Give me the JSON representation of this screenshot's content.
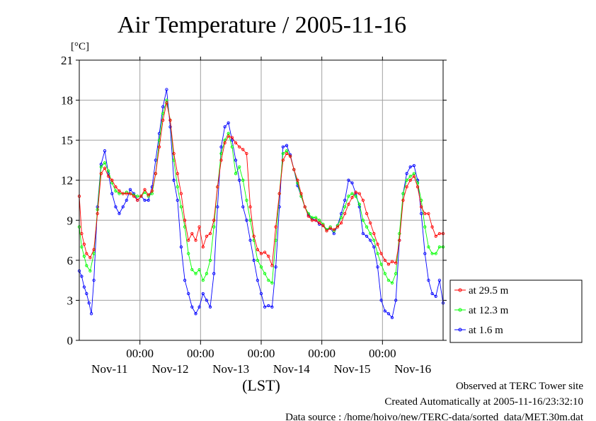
{
  "chart_data": {
    "type": "line",
    "title": "Air Temperature / 2005-11-16",
    "y_unit": "[°C]",
    "xlabel": "(LST)",
    "ylim": [
      0,
      21
    ],
    "yticks": [
      0,
      3,
      6,
      9,
      12,
      15,
      18,
      21
    ],
    "grid": true,
    "legend_position": "right, bottom",
    "x_range_days": [
      0,
      6
    ],
    "x_time_ticks": [
      {
        "day": 1,
        "label": "00:00"
      },
      {
        "day": 2,
        "label": "00:00"
      },
      {
        "day": 3,
        "label": "00:00"
      },
      {
        "day": 4,
        "label": "00:00"
      },
      {
        "day": 5,
        "label": "00:00"
      }
    ],
    "x_date_labels": [
      {
        "day": 0.5,
        "label": "Nov-11"
      },
      {
        "day": 1.5,
        "label": "Nov-12"
      },
      {
        "day": 2.5,
        "label": "Nov-13"
      },
      {
        "day": 3.5,
        "label": "Nov-14"
      },
      {
        "day": 4.5,
        "label": "Nov-15"
      },
      {
        "day": 5.5,
        "label": "Nov-16"
      }
    ],
    "series": [
      {
        "name": "at 29.5 m",
        "color": "#ff0000",
        "points": [
          [
            0.0,
            10.8
          ],
          [
            0.04,
            8.0
          ],
          [
            0.08,
            7.2
          ],
          [
            0.12,
            6.5
          ],
          [
            0.18,
            6.2
          ],
          [
            0.24,
            6.8
          ],
          [
            0.3,
            9.5
          ],
          [
            0.36,
            12.5
          ],
          [
            0.42,
            12.9
          ],
          [
            0.48,
            12.3
          ],
          [
            0.54,
            12.0
          ],
          [
            0.6,
            11.5
          ],
          [
            0.66,
            11.2
          ],
          [
            0.72,
            11.0
          ],
          [
            0.78,
            11.0
          ],
          [
            0.84,
            11.0
          ],
          [
            0.9,
            10.8
          ],
          [
            0.96,
            10.5
          ],
          [
            1.02,
            10.8
          ],
          [
            1.08,
            11.3
          ],
          [
            1.14,
            10.9
          ],
          [
            1.2,
            11.2
          ],
          [
            1.26,
            12.5
          ],
          [
            1.32,
            14.5
          ],
          [
            1.38,
            16.5
          ],
          [
            1.44,
            17.8
          ],
          [
            1.5,
            16.5
          ],
          [
            1.56,
            14.0
          ],
          [
            1.62,
            12.5
          ],
          [
            1.68,
            11.0
          ],
          [
            1.74,
            9.0
          ],
          [
            1.8,
            7.5
          ],
          [
            1.86,
            8.0
          ],
          [
            1.92,
            7.5
          ],
          [
            1.98,
            8.5
          ],
          [
            2.04,
            7.0
          ],
          [
            2.1,
            7.8
          ],
          [
            2.16,
            8.0
          ],
          [
            2.22,
            9.0
          ],
          [
            2.28,
            11.5
          ],
          [
            2.34,
            13.5
          ],
          [
            2.4,
            14.8
          ],
          [
            2.46,
            15.3
          ],
          [
            2.52,
            15.2
          ],
          [
            2.58,
            14.8
          ],
          [
            2.64,
            14.5
          ],
          [
            2.7,
            14.3
          ],
          [
            2.76,
            14.0
          ],
          [
            2.82,
            10.0
          ],
          [
            2.88,
            7.8
          ],
          [
            2.94,
            6.8
          ],
          [
            3.0,
            6.5
          ],
          [
            3.06,
            6.6
          ],
          [
            3.12,
            6.3
          ],
          [
            3.18,
            5.6
          ],
          [
            3.24,
            8.5
          ],
          [
            3.3,
            11.0
          ],
          [
            3.36,
            13.5
          ],
          [
            3.42,
            14.0
          ],
          [
            3.48,
            13.8
          ],
          [
            3.54,
            12.8
          ],
          [
            3.6,
            12.0
          ],
          [
            3.66,
            11.0
          ],
          [
            3.72,
            10.0
          ],
          [
            3.78,
            9.3
          ],
          [
            3.84,
            9.0
          ],
          [
            3.9,
            9.0
          ],
          [
            3.96,
            8.8
          ],
          [
            4.02,
            8.6
          ],
          [
            4.08,
            8.2
          ],
          [
            4.14,
            8.4
          ],
          [
            4.2,
            8.3
          ],
          [
            4.26,
            8.5
          ],
          [
            4.32,
            8.8
          ],
          [
            4.38,
            9.5
          ],
          [
            4.44,
            10.2
          ],
          [
            4.5,
            10.7
          ],
          [
            4.56,
            11.1
          ],
          [
            4.62,
            11.0
          ],
          [
            4.68,
            10.5
          ],
          [
            4.74,
            9.5
          ],
          [
            4.8,
            8.8
          ],
          [
            4.86,
            8.0
          ],
          [
            4.92,
            7.2
          ],
          [
            4.98,
            6.5
          ],
          [
            5.04,
            6.0
          ],
          [
            5.1,
            5.7
          ],
          [
            5.16,
            5.9
          ],
          [
            5.22,
            5.8
          ],
          [
            5.28,
            7.5
          ],
          [
            5.34,
            10.5
          ],
          [
            5.4,
            11.5
          ],
          [
            5.46,
            12.0
          ],
          [
            5.52,
            12.3
          ],
          [
            5.58,
            11.5
          ],
          [
            5.64,
            10.0
          ],
          [
            5.7,
            9.5
          ],
          [
            5.76,
            9.5
          ],
          [
            5.82,
            8.5
          ],
          [
            5.88,
            7.8
          ],
          [
            5.94,
            8.0
          ],
          [
            6.0,
            8.0
          ]
        ]
      },
      {
        "name": "at 12.3 m",
        "color": "#00ff00",
        "points": [
          [
            0.0,
            8.5
          ],
          [
            0.04,
            7.0
          ],
          [
            0.08,
            6.3
          ],
          [
            0.12,
            5.6
          ],
          [
            0.18,
            5.2
          ],
          [
            0.24,
            6.5
          ],
          [
            0.3,
            9.8
          ],
          [
            0.36,
            13.0
          ],
          [
            0.42,
            13.3
          ],
          [
            0.48,
            12.7
          ],
          [
            0.54,
            11.8
          ],
          [
            0.6,
            11.2
          ],
          [
            0.66,
            11.0
          ],
          [
            0.72,
            11.0
          ],
          [
            0.78,
            11.1
          ],
          [
            0.84,
            11.0
          ],
          [
            0.9,
            10.9
          ],
          [
            0.96,
            10.8
          ],
          [
            1.02,
            10.8
          ],
          [
            1.08,
            11.1
          ],
          [
            1.14,
            10.8
          ],
          [
            1.2,
            11.0
          ],
          [
            1.26,
            12.5
          ],
          [
            1.32,
            15.0
          ],
          [
            1.38,
            17.0
          ],
          [
            1.44,
            18.0
          ],
          [
            1.5,
            16.5
          ],
          [
            1.56,
            13.5
          ],
          [
            1.62,
            11.5
          ],
          [
            1.68,
            10.0
          ],
          [
            1.74,
            8.5
          ],
          [
            1.8,
            6.5
          ],
          [
            1.86,
            5.3
          ],
          [
            1.92,
            5.0
          ],
          [
            1.98,
            5.3
          ],
          [
            2.04,
            4.5
          ],
          [
            2.1,
            5.0
          ],
          [
            2.16,
            6.0
          ],
          [
            2.22,
            8.5
          ],
          [
            2.28,
            11.5
          ],
          [
            2.34,
            14.0
          ],
          [
            2.4,
            15.0
          ],
          [
            2.46,
            15.5
          ],
          [
            2.52,
            14.5
          ],
          [
            2.58,
            12.5
          ],
          [
            2.64,
            13.0
          ],
          [
            2.7,
            12.0
          ],
          [
            2.76,
            10.5
          ],
          [
            2.82,
            9.0
          ],
          [
            2.88,
            7.5
          ],
          [
            2.94,
            6.0
          ],
          [
            3.0,
            5.5
          ],
          [
            3.06,
            5.0
          ],
          [
            3.12,
            4.5
          ],
          [
            3.18,
            4.3
          ],
          [
            3.24,
            7.5
          ],
          [
            3.3,
            11.0
          ],
          [
            3.36,
            14.0
          ],
          [
            3.42,
            14.2
          ],
          [
            3.48,
            13.8
          ],
          [
            3.54,
            12.8
          ],
          [
            3.6,
            11.8
          ],
          [
            3.66,
            10.8
          ],
          [
            3.72,
            10.0
          ],
          [
            3.78,
            9.5
          ],
          [
            3.84,
            9.2
          ],
          [
            3.9,
            9.2
          ],
          [
            3.96,
            9.0
          ],
          [
            4.02,
            8.7
          ],
          [
            4.08,
            8.3
          ],
          [
            4.14,
            8.5
          ],
          [
            4.2,
            8.2
          ],
          [
            4.26,
            8.6
          ],
          [
            4.32,
            9.2
          ],
          [
            4.38,
            10.0
          ],
          [
            4.44,
            10.8
          ],
          [
            4.5,
            11.0
          ],
          [
            4.56,
            10.8
          ],
          [
            4.62,
            10.2
          ],
          [
            4.68,
            9.0
          ],
          [
            4.74,
            8.5
          ],
          [
            4.8,
            8.0
          ],
          [
            4.86,
            7.5
          ],
          [
            4.92,
            6.5
          ],
          [
            4.98,
            5.7
          ],
          [
            5.04,
            5.0
          ],
          [
            5.1,
            4.5
          ],
          [
            5.16,
            4.3
          ],
          [
            5.22,
            5.0
          ],
          [
            5.28,
            8.0
          ],
          [
            5.34,
            11.0
          ],
          [
            5.4,
            12.0
          ],
          [
            5.46,
            12.3
          ],
          [
            5.52,
            12.5
          ],
          [
            5.58,
            11.8
          ],
          [
            5.64,
            10.5
          ],
          [
            5.7,
            8.5
          ],
          [
            5.76,
            7.0
          ],
          [
            5.82,
            6.5
          ],
          [
            5.88,
            6.5
          ],
          [
            5.94,
            7.0
          ],
          [
            6.0,
            7.0
          ]
        ]
      },
      {
        "name": "at 1.6 m",
        "color": "#0000ff",
        "points": [
          [
            0.0,
            5.2
          ],
          [
            0.04,
            4.8
          ],
          [
            0.08,
            4.0
          ],
          [
            0.12,
            3.5
          ],
          [
            0.16,
            2.8
          ],
          [
            0.2,
            2.0
          ],
          [
            0.24,
            4.5
          ],
          [
            0.3,
            10.0
          ],
          [
            0.36,
            13.2
          ],
          [
            0.42,
            14.2
          ],
          [
            0.48,
            12.5
          ],
          [
            0.54,
            11.0
          ],
          [
            0.6,
            10.0
          ],
          [
            0.66,
            9.5
          ],
          [
            0.72,
            10.0
          ],
          [
            0.78,
            10.5
          ],
          [
            0.84,
            11.3
          ],
          [
            0.9,
            11.0
          ],
          [
            0.96,
            10.5
          ],
          [
            1.02,
            10.8
          ],
          [
            1.08,
            10.5
          ],
          [
            1.14,
            10.5
          ],
          [
            1.2,
            11.5
          ],
          [
            1.26,
            13.5
          ],
          [
            1.32,
            15.5
          ],
          [
            1.38,
            17.5
          ],
          [
            1.44,
            18.8
          ],
          [
            1.5,
            16.0
          ],
          [
            1.56,
            12.0
          ],
          [
            1.62,
            10.5
          ],
          [
            1.68,
            7.0
          ],
          [
            1.74,
            4.5
          ],
          [
            1.8,
            3.5
          ],
          [
            1.86,
            2.5
          ],
          [
            1.92,
            2.0
          ],
          [
            1.98,
            2.5
          ],
          [
            2.04,
            3.5
          ],
          [
            2.1,
            3.0
          ],
          [
            2.16,
            2.5
          ],
          [
            2.22,
            5.0
          ],
          [
            2.28,
            10.0
          ],
          [
            2.34,
            14.5
          ],
          [
            2.4,
            16.0
          ],
          [
            2.46,
            16.3
          ],
          [
            2.52,
            15.0
          ],
          [
            2.58,
            13.5
          ],
          [
            2.64,
            12.0
          ],
          [
            2.7,
            10.0
          ],
          [
            2.76,
            9.0
          ],
          [
            2.82,
            7.5
          ],
          [
            2.88,
            6.0
          ],
          [
            2.94,
            4.5
          ],
          [
            3.0,
            3.5
          ],
          [
            3.06,
            2.5
          ],
          [
            3.12,
            2.6
          ],
          [
            3.18,
            2.5
          ],
          [
            3.24,
            5.5
          ],
          [
            3.3,
            10.0
          ],
          [
            3.36,
            14.5
          ],
          [
            3.42,
            14.6
          ],
          [
            3.48,
            13.9
          ],
          [
            3.54,
            12.8
          ],
          [
            3.6,
            11.6
          ],
          [
            3.66,
            10.8
          ],
          [
            3.72,
            10.0
          ],
          [
            3.78,
            9.4
          ],
          [
            3.84,
            9.1
          ],
          [
            3.9,
            9.0
          ],
          [
            3.96,
            8.7
          ],
          [
            4.02,
            8.6
          ],
          [
            4.08,
            8.3
          ],
          [
            4.14,
            8.4
          ],
          [
            4.2,
            8.0
          ],
          [
            4.26,
            8.6
          ],
          [
            4.32,
            9.5
          ],
          [
            4.38,
            10.5
          ],
          [
            4.44,
            12.0
          ],
          [
            4.5,
            11.8
          ],
          [
            4.56,
            11.0
          ],
          [
            4.62,
            10.0
          ],
          [
            4.68,
            8.0
          ],
          [
            4.74,
            7.8
          ],
          [
            4.8,
            7.5
          ],
          [
            4.86,
            7.0
          ],
          [
            4.92,
            5.5
          ],
          [
            4.98,
            3.0
          ],
          [
            5.04,
            2.2
          ],
          [
            5.1,
            2.0
          ],
          [
            5.16,
            1.7
          ],
          [
            5.22,
            3.0
          ],
          [
            5.28,
            7.5
          ],
          [
            5.34,
            11.0
          ],
          [
            5.4,
            12.5
          ],
          [
            5.46,
            13.0
          ],
          [
            5.52,
            13.1
          ],
          [
            5.58,
            12.0
          ],
          [
            5.64,
            9.5
          ],
          [
            5.7,
            6.5
          ],
          [
            5.76,
            4.5
          ],
          [
            5.82,
            3.5
          ],
          [
            5.88,
            3.3
          ],
          [
            5.94,
            4.5
          ],
          [
            6.0,
            2.8
          ]
        ]
      }
    ]
  },
  "footer": {
    "line1": "Observed at TERC Tower site",
    "line2": "Created Automatically at 2005-11-16/23:32:10",
    "line3": "Data source : /home/hoivo/new/TERC-data/sorted_data/MET.30m.dat"
  }
}
